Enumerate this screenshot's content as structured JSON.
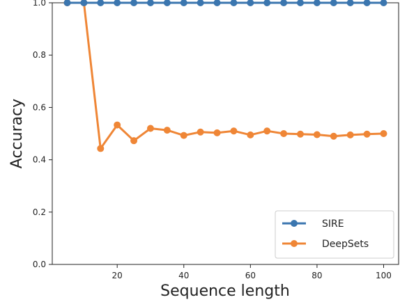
{
  "chart_data": {
    "type": "line",
    "title": "",
    "xlabel": "Sequence length",
    "ylabel": "Accuracy",
    "xlim": [
      0.5,
      104.5
    ],
    "ylim": [
      0.0,
      1.0
    ],
    "xticks": [
      20,
      40,
      60,
      80,
      100
    ],
    "yticks": [
      0.0,
      0.2,
      0.4,
      0.6,
      0.8,
      1.0
    ],
    "x": [
      5,
      10,
      15,
      20,
      25,
      30,
      35,
      40,
      45,
      50,
      55,
      60,
      65,
      70,
      75,
      80,
      85,
      90,
      95,
      100
    ],
    "series": [
      {
        "name": "SIRE",
        "color": "#3b76af",
        "values": [
          1.0,
          1.0,
          1.0,
          1.0,
          1.0,
          1.0,
          1.0,
          1.0,
          1.0,
          1.0,
          1.0,
          1.0,
          1.0,
          1.0,
          1.0,
          1.0,
          1.0,
          1.0,
          1.0,
          1.0
        ]
      },
      {
        "name": "DeepSets",
        "color": "#ef8636",
        "values": [
          1.0,
          1.0,
          0.443,
          0.533,
          0.473,
          0.52,
          0.513,
          0.493,
          0.506,
          0.503,
          0.51,
          0.495,
          0.51,
          0.5,
          0.498,
          0.496,
          0.49,
          0.495,
          0.498,
          0.5
        ]
      }
    ],
    "grid": false,
    "legend_position": "lower-right"
  }
}
